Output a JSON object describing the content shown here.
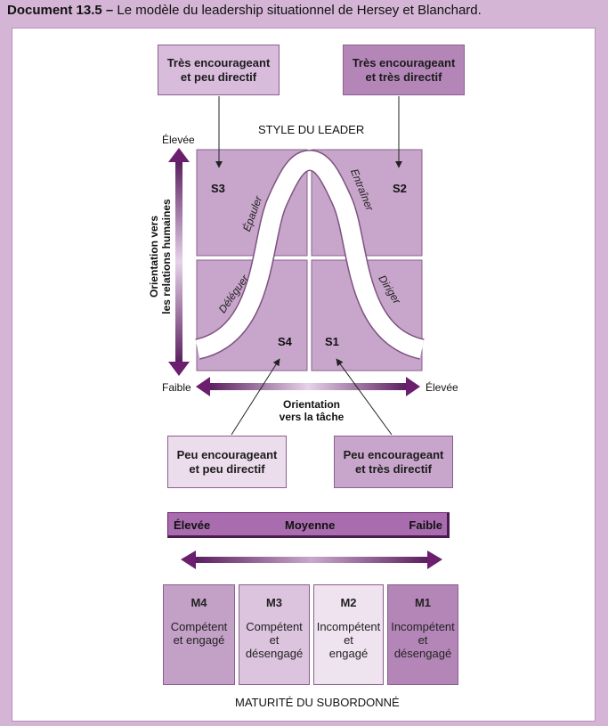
{
  "title": {
    "bold": "Document 13.5 –",
    "text": " Le modèle du leadership situationnel de Hersey et Blanchard."
  },
  "top_boxes": {
    "left": "Très encourageant\net peu directif",
    "right": "Très encourageant\net très directif"
  },
  "bottom_boxes": {
    "left": "Peu encourageant\net peu directif",
    "right": "Peu encourageant\net très directif"
  },
  "style_label": "STYLE DU LEADER",
  "y_axis": {
    "high": "Élevée",
    "low": "Faible",
    "title": "Orientation vers\nles relations humaines"
  },
  "x_axis": {
    "high": "Élevée",
    "title": "Orientation\nvers la tâche"
  },
  "quadrants": [
    "S3",
    "S2",
    "S4",
    "S1"
  ],
  "curve_labels": {
    "epauler": "Épauler",
    "entrainer": "Entraîner",
    "deleguer": "Déléguer",
    "diriger": "Diriger"
  },
  "maturity_scale": {
    "high": "Élevée",
    "mid": "Moyenne",
    "low": "Faible"
  },
  "maturity_levels": [
    {
      "code": "M4",
      "desc": "Compétent\net engagé"
    },
    {
      "code": "M3",
      "desc": "Compétent\net\ndésengagé"
    },
    {
      "code": "M2",
      "desc": "Incompétent\net\nengagé"
    },
    {
      "code": "M1",
      "desc": "Incompétent\net\ndésengagé"
    }
  ],
  "maturity_title": "MATURITÉ DU SUBORDONNÉ",
  "colors": {
    "background": "#d4b5d6",
    "quadrant": "#c8a6cb",
    "dark_box": "#b486b8",
    "light_box": "#d9bcdc",
    "lightest_box": "#ecdded",
    "arrow": "#6b1f6e"
  }
}
